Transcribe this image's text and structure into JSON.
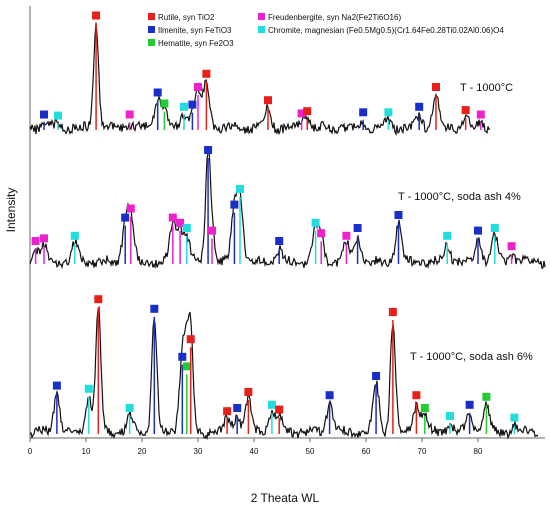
{
  "chart_data": {
    "type": "line",
    "xlabel": "2 Theata WL",
    "ylabel": "Intensity",
    "xlim": [
      0,
      90
    ],
    "xticks": [
      0,
      10,
      20,
      30,
      40,
      50,
      60,
      70,
      80
    ],
    "legend_placement": "top",
    "phases": [
      {
        "key": "R",
        "name": "Rutile, syn TiO2",
        "color": "#e8201a"
      },
      {
        "key": "I",
        "name": "Ilmenite, syn FeTiO3",
        "color": "#1a2ec8"
      },
      {
        "key": "H",
        "name": "Hematite, syn Fe2O3",
        "color": "#22cc33"
      },
      {
        "key": "F",
        "name": "Freudenbergite, syn Na2(Fe2Ti6O16)",
        "color": "#ee22cc"
      },
      {
        "key": "C",
        "name": "Chromite, magnesian (Fe0.5Mg0.5)(Cr1.64Fe0.28Ti0.02Al0.06)O4",
        "color": "#22dddd"
      }
    ],
    "series": [
      {
        "name": "T - 1000°C",
        "peaks": [
          {
            "x": 2.5,
            "h": 0.05,
            "p": "I"
          },
          {
            "x": 5.0,
            "h": 0.04,
            "p": "C"
          },
          {
            "x": 11.8,
            "h": 0.95,
            "p": "R"
          },
          {
            "x": 17.8,
            "h": 0.05,
            "p": "F"
          },
          {
            "x": 22.8,
            "h": 0.25,
            "p": "I"
          },
          {
            "x": 24.0,
            "h": 0.15,
            "p": "H"
          },
          {
            "x": 27.5,
            "h": 0.12,
            "p": "C"
          },
          {
            "x": 29.0,
            "h": 0.14,
            "p": "I"
          },
          {
            "x": 30.0,
            "h": 0.3,
            "p": "F"
          },
          {
            "x": 31.5,
            "h": 0.42,
            "p": "R"
          },
          {
            "x": 42.5,
            "h": 0.18,
            "p": "R"
          },
          {
            "x": 48.5,
            "h": 0.06,
            "p": "F"
          },
          {
            "x": 49.5,
            "h": 0.08,
            "p": "R"
          },
          {
            "x": 59.5,
            "h": 0.07,
            "p": "I"
          },
          {
            "x": 64.0,
            "h": 0.07,
            "p": "C"
          },
          {
            "x": 69.5,
            "h": 0.12,
            "p": "I"
          },
          {
            "x": 72.5,
            "h": 0.3,
            "p": "R"
          },
          {
            "x": 77.8,
            "h": 0.09,
            "p": "R"
          },
          {
            "x": 80.5,
            "h": 0.05,
            "p": "F"
          }
        ]
      },
      {
        "name": "T - 1000°C, soda ash 4%",
        "peaks": [
          {
            "x": 1.0,
            "h": 0.1,
            "p": "F"
          },
          {
            "x": 2.5,
            "h": 0.12,
            "p": "F"
          },
          {
            "x": 8.0,
            "h": 0.14,
            "p": "C"
          },
          {
            "x": 17.0,
            "h": 0.28,
            "p": "I"
          },
          {
            "x": 18.0,
            "h": 0.35,
            "p": "F"
          },
          {
            "x": 25.5,
            "h": 0.28,
            "p": "F"
          },
          {
            "x": 26.8,
            "h": 0.24,
            "p": "F"
          },
          {
            "x": 28.0,
            "h": 0.2,
            "p": "C"
          },
          {
            "x": 31.8,
            "h": 0.8,
            "p": "I"
          },
          {
            "x": 32.5,
            "h": 0.18,
            "p": "F"
          },
          {
            "x": 36.5,
            "h": 0.38,
            "p": "I"
          },
          {
            "x": 37.5,
            "h": 0.5,
            "p": "C"
          },
          {
            "x": 44.5,
            "h": 0.1,
            "p": "I"
          },
          {
            "x": 51.0,
            "h": 0.24,
            "p": "C"
          },
          {
            "x": 52.0,
            "h": 0.16,
            "p": "F"
          },
          {
            "x": 56.5,
            "h": 0.14,
            "p": "F"
          },
          {
            "x": 58.5,
            "h": 0.2,
            "p": "I"
          },
          {
            "x": 65.8,
            "h": 0.3,
            "p": "I"
          },
          {
            "x": 74.5,
            "h": 0.14,
            "p": "C"
          },
          {
            "x": 80.0,
            "h": 0.18,
            "p": "I"
          },
          {
            "x": 83.0,
            "h": 0.2,
            "p": "C"
          },
          {
            "x": 86.0,
            "h": 0.06,
            "p": "F"
          }
        ]
      },
      {
        "name": "T - 1000°C, soda ash 6%",
        "peaks": [
          {
            "x": 4.8,
            "h": 0.24,
            "p": "I"
          },
          {
            "x": 10.5,
            "h": 0.22,
            "p": "C"
          },
          {
            "x": 12.2,
            "h": 0.78,
            "p": "R"
          },
          {
            "x": 17.8,
            "h": 0.1,
            "p": "C"
          },
          {
            "x": 22.2,
            "h": 0.72,
            "p": "I"
          },
          {
            "x": 27.2,
            "h": 0.42,
            "p": "I"
          },
          {
            "x": 28.0,
            "h": 0.36,
            "p": "H"
          },
          {
            "x": 28.7,
            "h": 0.53,
            "p": "R"
          },
          {
            "x": 35.2,
            "h": 0.08,
            "p": "R"
          },
          {
            "x": 37.0,
            "h": 0.1,
            "p": "I"
          },
          {
            "x": 39.0,
            "h": 0.2,
            "p": "R"
          },
          {
            "x": 43.2,
            "h": 0.12,
            "p": "C"
          },
          {
            "x": 44.5,
            "h": 0.09,
            "p": "R"
          },
          {
            "x": 53.5,
            "h": 0.18,
            "p": "I"
          },
          {
            "x": 61.8,
            "h": 0.3,
            "p": "I"
          },
          {
            "x": 64.8,
            "h": 0.7,
            "p": "R"
          },
          {
            "x": 69.0,
            "h": 0.18,
            "p": "R"
          },
          {
            "x": 70.5,
            "h": 0.1,
            "p": "H"
          },
          {
            "x": 75.0,
            "h": 0.05,
            "p": "C"
          },
          {
            "x": 78.5,
            "h": 0.12,
            "p": "I"
          },
          {
            "x": 81.5,
            "h": 0.17,
            "p": "H"
          },
          {
            "x": 86.5,
            "h": 0.04,
            "p": "C"
          }
        ]
      }
    ]
  }
}
